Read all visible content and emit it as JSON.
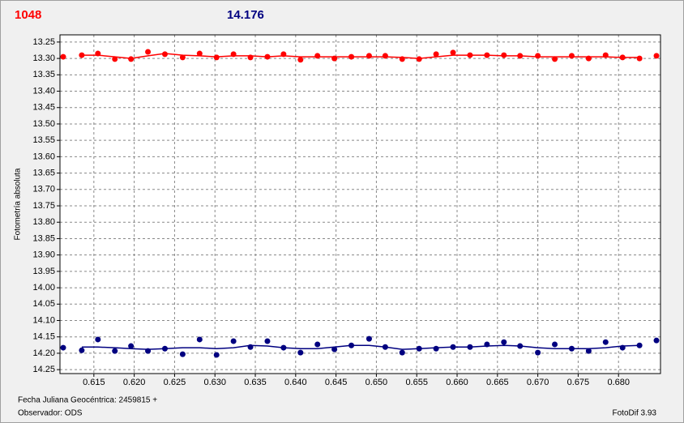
{
  "chart_data": {
    "type": "scatter",
    "star_label": "1048",
    "magnitude_label": "14.176",
    "y_label": "Fotometría absoluta",
    "x_label": "Fecha Juliana Geocéntrica: 2459815 +",
    "observer": "Observador: ODS",
    "software": "FotoDif 3.93",
    "xlim": [
      0.6108,
      0.6852
    ],
    "ylim": [
      14.262,
      13.228
    ],
    "grid": true,
    "xticks": [
      0.615,
      {
        "value": 0.62,
        "label": "0.620"
      },
      0.625,
      {
        "value": 0.63,
        "label": "0.630"
      },
      0.635,
      {
        "value": 0.64,
        "label": "0.640"
      },
      0.645,
      {
        "value": 0.65,
        "label": "0.650"
      },
      0.655,
      {
        "value": 0.66,
        "label": "0.660"
      },
      0.665,
      {
        "value": 0.67,
        "label": "0.670"
      },
      0.675,
      {
        "value": 0.68,
        "label": "0.680"
      }
    ],
    "yticks": [
      13.25,
      {
        "value": 13.3,
        "label": "13.30"
      },
      13.35,
      {
        "value": 13.4,
        "label": "13.40"
      },
      13.45,
      {
        "value": 13.5,
        "label": "13.50"
      },
      13.55,
      {
        "value": 13.6,
        "label": "13.60"
      },
      13.65,
      {
        "value": 13.7,
        "label": "13.70"
      },
      13.75,
      {
        "value": 13.8,
        "label": "13.80"
      },
      13.85,
      {
        "value": 13.9,
        "label": "13.90"
      },
      13.95,
      {
        "value": 14.0,
        "label": "14.00"
      },
      14.05,
      {
        "value": 14.1,
        "label": "14.10"
      },
      14.15,
      {
        "value": 14.2,
        "label": "14.20"
      },
      14.25
    ],
    "x": [
      0.6112,
      0.6135,
      0.6155,
      0.6176,
      0.6196,
      0.6217,
      0.6238,
      0.626,
      0.6281,
      0.6302,
      0.6323,
      0.6344,
      0.6365,
      0.6385,
      0.6406,
      0.6427,
      0.6448,
      0.6469,
      0.6491,
      0.6511,
      0.6532,
      0.6553,
      0.6574,
      0.6595,
      0.6616,
      0.6637,
      0.6658,
      0.6678,
      0.67,
      0.6721,
      0.6742,
      0.6763,
      0.6784,
      0.6805,
      0.6826,
      0.6847
    ],
    "series": [
      {
        "color": "#ff0000",
        "style": "points",
        "values": [
          13.295,
          13.29,
          13.285,
          13.302,
          13.302,
          13.28,
          13.287,
          13.297,
          13.285,
          13.297,
          13.287,
          13.297,
          13.295,
          13.287,
          13.304,
          13.292,
          13.3,
          13.295,
          13.292,
          13.292,
          13.302,
          13.302,
          13.287,
          13.282,
          13.29,
          13.29,
          13.29,
          13.292,
          13.292,
          13.302,
          13.292,
          13.3,
          13.29,
          13.297,
          13.3,
          13.292
        ]
      },
      {
        "color": "#ff0000",
        "style": "line",
        "values": [
          null,
          13.29,
          13.29,
          13.295,
          13.3,
          13.292,
          13.285,
          13.29,
          13.292,
          13.295,
          13.292,
          13.292,
          13.295,
          13.292,
          13.295,
          13.295,
          13.295,
          13.295,
          13.295,
          13.295,
          13.297,
          13.3,
          13.295,
          13.29,
          13.29,
          13.29,
          13.292,
          13.292,
          13.295,
          13.295,
          13.295,
          13.295,
          13.295,
          13.297,
          13.297,
          null
        ]
      },
      {
        "color": "#000080",
        "style": "points",
        "values": [
          14.183,
          14.191,
          14.158,
          14.193,
          14.178,
          14.193,
          14.186,
          14.203,
          14.158,
          14.205,
          14.163,
          14.181,
          14.163,
          14.183,
          14.198,
          14.173,
          14.188,
          14.176,
          14.156,
          14.181,
          14.198,
          14.186,
          14.186,
          14.181,
          14.181,
          14.173,
          14.166,
          14.178,
          14.198,
          14.173,
          14.186,
          14.193,
          14.166,
          14.183,
          14.176,
          14.161
        ]
      },
      {
        "color": "#000080",
        "style": "line",
        "values": [
          null,
          14.181,
          14.181,
          14.183,
          14.186,
          14.188,
          14.186,
          14.183,
          14.183,
          14.186,
          14.183,
          14.176,
          14.178,
          14.183,
          14.186,
          14.186,
          14.181,
          14.176,
          14.176,
          14.181,
          14.188,
          14.186,
          14.183,
          14.181,
          14.181,
          14.178,
          14.176,
          14.178,
          14.183,
          14.186,
          14.186,
          14.186,
          14.183,
          14.178,
          14.176,
          null
        ]
      }
    ]
  }
}
